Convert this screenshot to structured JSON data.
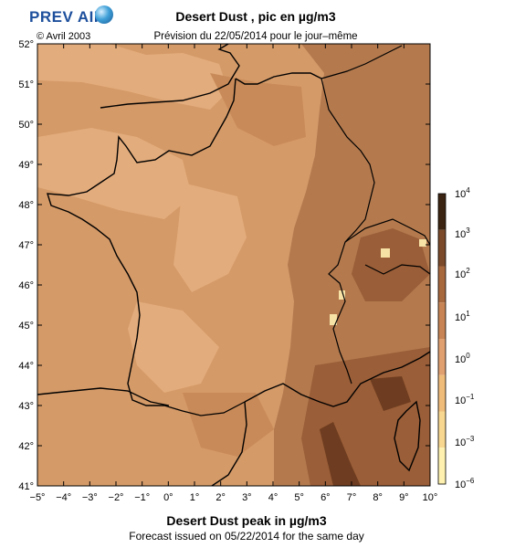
{
  "logo": {
    "text": "PREV AIR"
  },
  "header": {
    "copyright": "© Avril 2003",
    "title": "Desert Dust , pic en µg/m3",
    "subtitle": "Prévision du 22/05/2014 pour le jour–même"
  },
  "footer": {
    "title": "Desert Dust peak in µg/m3",
    "subtitle": "Forecast issued on 05/22/2014 for the same day"
  },
  "map": {
    "lon_range": [
      -5,
      10
    ],
    "lat_range": [
      41,
      52
    ],
    "x_ticks": [
      {
        "v": -5,
        "label": "−5°"
      },
      {
        "v": -4,
        "label": "−4°"
      },
      {
        "v": -3,
        "label": "−3°"
      },
      {
        "v": -2,
        "label": "−2°"
      },
      {
        "v": -1,
        "label": "−1°"
      },
      {
        "v": 0,
        "label": "0°"
      },
      {
        "v": 1,
        "label": "1°"
      },
      {
        "v": 2,
        "label": "2°"
      },
      {
        "v": 3,
        "label": "3°"
      },
      {
        "v": 4,
        "label": "4°"
      },
      {
        "v": 5,
        "label": "5°"
      },
      {
        "v": 6,
        "label": "6°"
      },
      {
        "v": 7,
        "label": "7°"
      },
      {
        "v": 8,
        "label": "8°"
      },
      {
        "v": 9,
        "label": "9°"
      },
      {
        "v": 10,
        "label": "10°"
      }
    ],
    "y_ticks": [
      {
        "v": 52,
        "label": "52°"
      },
      {
        "v": 51,
        "label": "51°"
      },
      {
        "v": 50,
        "label": "50°"
      },
      {
        "v": 49,
        "label": "49°"
      },
      {
        "v": 48,
        "label": "48°"
      },
      {
        "v": 47,
        "label": "47°"
      },
      {
        "v": 46,
        "label": "46°"
      },
      {
        "v": 45,
        "label": "45°"
      },
      {
        "v": 44,
        "label": "44°"
      },
      {
        "v": 43,
        "label": "43°"
      },
      {
        "v": 42,
        "label": "42°"
      },
      {
        "v": 41,
        "label": "41°"
      }
    ]
  },
  "colorbar": {
    "labels": [
      {
        "base": "10",
        "exp": "4"
      },
      {
        "base": "10",
        "exp": "3"
      },
      {
        "base": "10",
        "exp": "2"
      },
      {
        "base": "10",
        "exp": "1"
      },
      {
        "base": "10",
        "exp": "0"
      },
      {
        "base": "10",
        "exp": "−1"
      },
      {
        "base": "10",
        "exp": "−3"
      },
      {
        "base": "10",
        "exp": "−6"
      }
    ],
    "colors": [
      "#3c2412",
      "#7a4a2a",
      "#a8683e",
      "#c88454",
      "#e0a070",
      "#f0bc7a",
      "#f8d890",
      "#fff2b0"
    ]
  },
  "colors": {
    "land_base": "#d49a68",
    "light_patch": "#e3ac7c",
    "mid_patch": "#c88a58",
    "dark_east": "#b47a4e",
    "darker_se": "#9a5e38",
    "darkest": "#6e3c20",
    "bright": "#f7e2a6"
  }
}
